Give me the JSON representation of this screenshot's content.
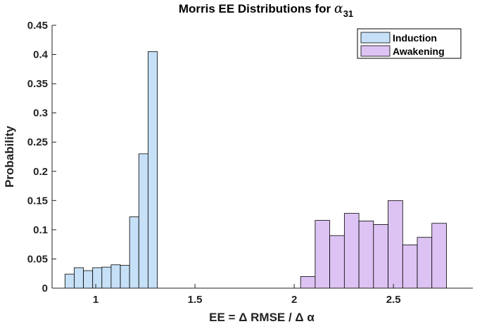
{
  "chart_data": {
    "type": "bar",
    "title": "Morris EE Distributions for ",
    "title_symbol": "α",
    "title_subscript": "31",
    "xlabel": "EE = Δ RMSE / Δ α",
    "ylabel": "Probability",
    "xlim": [
      0.78,
      2.9
    ],
    "ylim": [
      0,
      0.45
    ],
    "xticks": [
      1,
      1.5,
      2,
      2.5
    ],
    "xtick_labels": [
      "1",
      "1.5",
      "2",
      "2.5"
    ],
    "yticks": [
      0,
      0.05,
      0.1,
      0.15,
      0.2,
      0.25,
      0.3,
      0.35,
      0.4,
      0.45
    ],
    "ytick_labels": [
      "0",
      "0.05",
      "0.1",
      "0.15",
      "0.2",
      "0.25",
      "0.3",
      "0.35",
      "0.4",
      "0.45"
    ],
    "legend_position": "top-right",
    "series": [
      {
        "name": "Induction",
        "color": "#c6e0f7",
        "bin_start": 0.845,
        "bin_width": 0.0465,
        "values": [
          0.024,
          0.035,
          0.03,
          0.035,
          0.036,
          0.04,
          0.039,
          0.122,
          0.23,
          0.405
        ]
      },
      {
        "name": "Awakening",
        "color": "#ddc3f3",
        "bin_start": 2.032,
        "bin_width": 0.0735,
        "values": [
          0.02,
          0.116,
          0.09,
          0.128,
          0.115,
          0.109,
          0.15,
          0.074,
          0.087,
          0.111
        ]
      }
    ]
  }
}
